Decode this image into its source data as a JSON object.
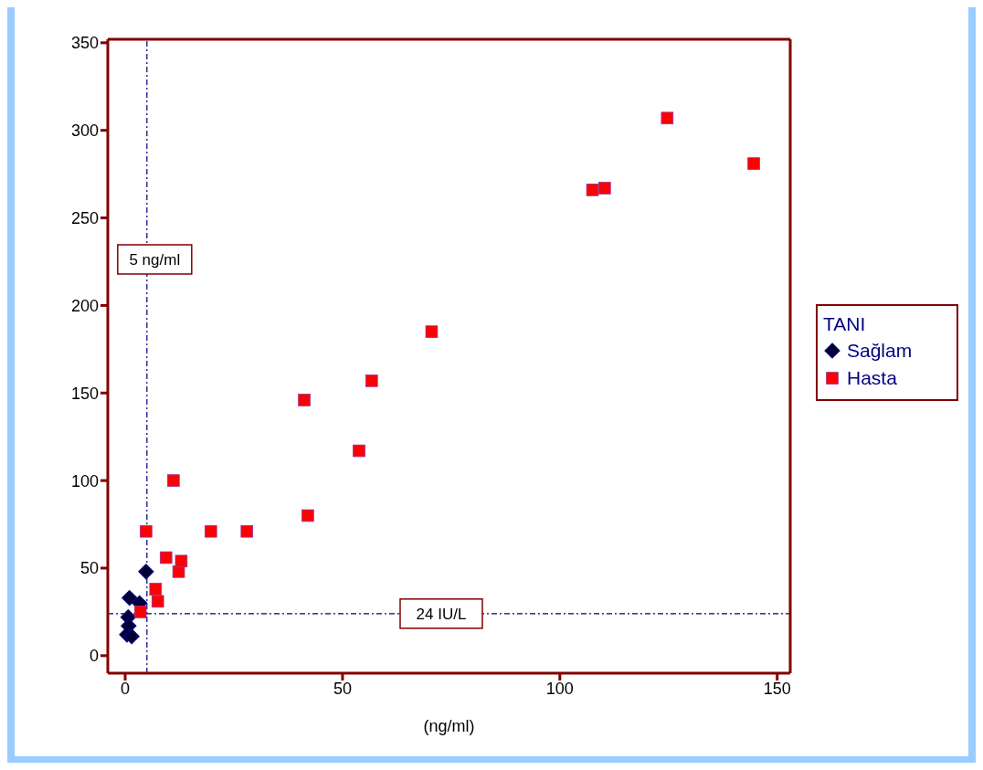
{
  "chart_data": {
    "type": "scatter",
    "xlabel": "(ng/ml)",
    "legend_title": "TANI",
    "legend": "right",
    "grid": false,
    "xlim": [
      -4,
      153
    ],
    "xticks": [
      0,
      50,
      100,
      150
    ],
    "ylim": [
      -10,
      352
    ],
    "yticks": [
      0,
      50,
      100,
      150,
      200,
      250,
      300,
      350
    ],
    "ref_lines": [
      {
        "axis": "x",
        "value": 5,
        "label": "5 ng/ml",
        "line_style": "dashed",
        "color": "#000080"
      },
      {
        "axis": "y",
        "value": 24,
        "label": "24  IU/L",
        "line_style": "dashed",
        "color": "#000080"
      }
    ],
    "series": [
      {
        "name": "Sağlam",
        "color": "#000033",
        "marker": "diamond",
        "x": [
          4.8,
          1.0,
          3.3,
          1.5,
          0.7,
          0.8,
          0.4,
          1.5
        ],
        "values": [
          48,
          33,
          30,
          null,
          22,
          17,
          12,
          11
        ]
      },
      {
        "name": "Hasta",
        "color": "#ff0000",
        "marker": "square",
        "x": [
          4.8,
          11.1,
          9.4,
          12.3,
          12.9,
          7.0,
          7.5,
          3.5,
          19.7,
          28,
          41.2,
          42,
          53.8,
          56.7,
          70.5,
          107.5,
          110.3,
          124.7,
          144.6
        ],
        "values": [
          71,
          100,
          56,
          48,
          54,
          38,
          31,
          25,
          71,
          71,
          146,
          80,
          117,
          157,
          185,
          266,
          267,
          307,
          281
        ]
      }
    ]
  }
}
